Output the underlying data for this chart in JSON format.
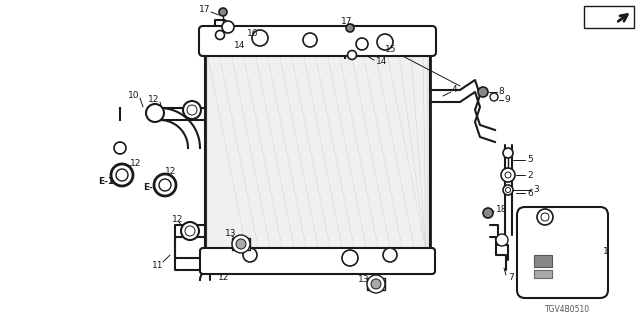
{
  "bg_color": "#ffffff",
  "fig_width": 6.4,
  "fig_height": 3.2,
  "dpi": 100,
  "watermark": "TGV4B0510",
  "line_color": "#1a1a1a",
  "gray_color": "#888888",
  "light_gray": "#cccccc"
}
